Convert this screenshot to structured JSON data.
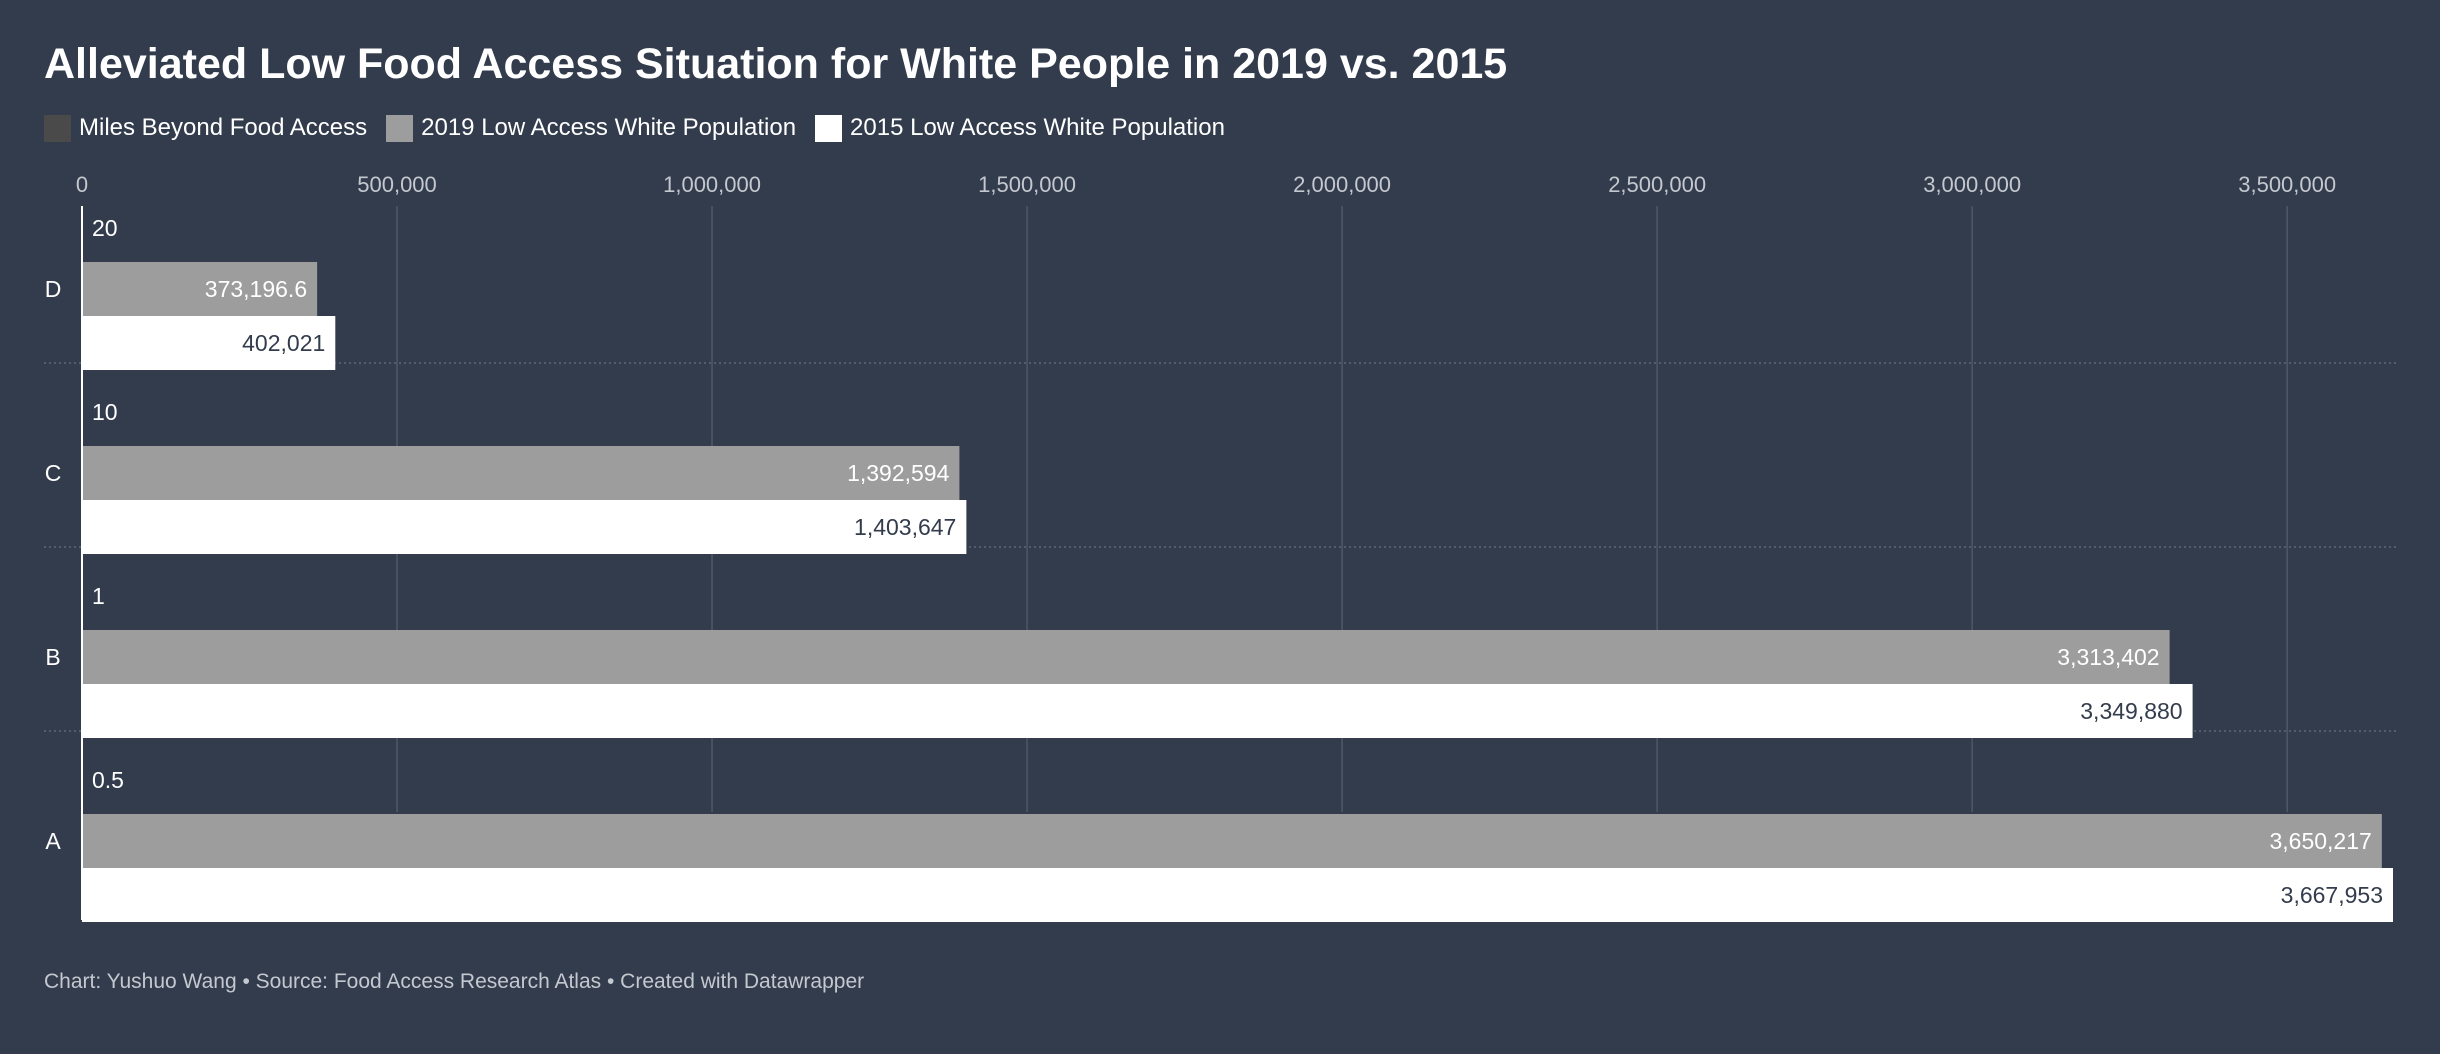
{
  "title": "Alleviated Low Food Access Situation for White People in 2019 vs. 2015",
  "footer": "Chart: Yushuo Wang • Source: Food Access Research Atlas • Created with Datawrapper",
  "colors": {
    "background": "#333c4c",
    "miles": "#4a4a4a",
    "pop2019": "#9d9d9d",
    "pop2015": "#ffffff",
    "grid": "#4e5868",
    "separator": "#5e6878",
    "tick_label": "#c4c8cf"
  },
  "legend": [
    {
      "label": "Miles Beyond Food Access",
      "color": "#4a4a4a"
    },
    {
      "label": "2019 Low Access White Population",
      "color": "#9d9d9d"
    },
    {
      "label": "2015 Low Access White Population",
      "color": "#ffffff"
    }
  ],
  "chart_data": {
    "type": "bar",
    "orientation": "horizontal",
    "categories": [
      "D",
      "C",
      "B",
      "A"
    ],
    "x_ticks": [
      0,
      500000,
      1000000,
      1500000,
      2000000,
      2500000,
      3000000,
      3500000
    ],
    "x_tick_labels": [
      "0",
      "500,000",
      "1,000,000",
      "1,500,000",
      "2,000,000",
      "2,500,000",
      "3,000,000",
      "3,500,000"
    ],
    "xlim": [
      0,
      3667953
    ],
    "grid": true,
    "series": [
      {
        "name": "Miles Beyond Food Access",
        "values": [
          20,
          10,
          1,
          0.5
        ],
        "labels": [
          "20",
          "10",
          "1",
          "0.5"
        ]
      },
      {
        "name": "2019 Low Access White Population",
        "values": [
          373196.6,
          1392594,
          3313402,
          3650217
        ],
        "labels": [
          "373,196.6",
          "1,392,594",
          "3,313,402",
          "3,650,217"
        ]
      },
      {
        "name": "2015 Low Access White Population",
        "values": [
          402021,
          1403647,
          3349880,
          3667953
        ],
        "labels": [
          "402,021",
          "1,403,647",
          "3,349,880",
          "3,667,953"
        ]
      }
    ]
  }
}
